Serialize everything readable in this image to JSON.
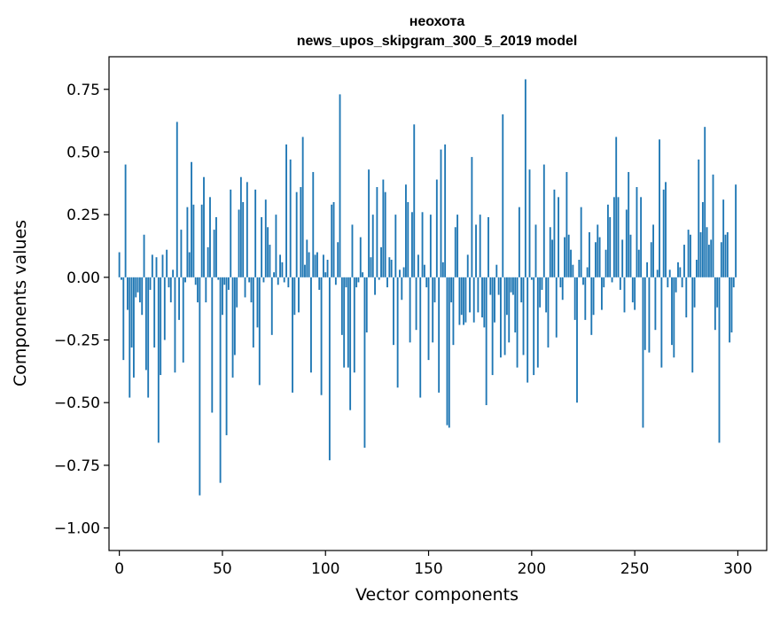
{
  "chart_data": {
    "type": "bar",
    "title": "неохота",
    "subtitle": "news_upos_skipgram_300_5_2019 model",
    "xlabel": "Vector components",
    "ylabel": "Components values",
    "xlim": [
      -5,
      314
    ],
    "ylim": [
      -1.09,
      0.88
    ],
    "xticks": [
      0,
      50,
      100,
      150,
      200,
      250,
      300
    ],
    "xtick_labels": [
      "0",
      "50",
      "100",
      "150",
      "200",
      "250",
      "300"
    ],
    "yticks": [
      -1.0,
      -0.75,
      -0.5,
      -0.25,
      0.0,
      0.25,
      0.5,
      0.75
    ],
    "ytick_labels": [
      "−1.00",
      "−0.75",
      "−0.50",
      "−0.25",
      "0.00",
      "0.25",
      "0.50",
      "0.75"
    ],
    "grid": false,
    "bar_color": "#1f77b4",
    "values": [
      0.1,
      -0.01,
      -0.33,
      0.45,
      -0.13,
      -0.48,
      -0.28,
      -0.4,
      -0.08,
      -0.06,
      -0.1,
      -0.15,
      0.17,
      -0.37,
      -0.48,
      -0.05,
      0.09,
      -0.28,
      0.08,
      -0.66,
      -0.39,
      0.09,
      -0.25,
      0.11,
      -0.04,
      -0.1,
      0.03,
      -0.38,
      0.62,
      -0.17,
      0.19,
      -0.34,
      -0.02,
      0.28,
      0.1,
      0.46,
      0.29,
      -0.03,
      -0.1,
      -0.87,
      0.29,
      0.4,
      -0.1,
      0.12,
      0.32,
      -0.54,
      0.19,
      0.24,
      -0.01,
      -0.82,
      -0.15,
      -0.03,
      -0.63,
      -0.05,
      0.35,
      -0.4,
      -0.31,
      -0.12,
      0.27,
      0.4,
      0.3,
      -0.08,
      0.38,
      -0.02,
      -0.1,
      -0.28,
      0.35,
      -0.2,
      -0.43,
      0.24,
      -0.02,
      0.31,
      0.2,
      0.13,
      -0.23,
      0.02,
      0.25,
      -0.03,
      0.09,
      0.06,
      -0.02,
      0.53,
      -0.04,
      0.47,
      -0.46,
      -0.15,
      0.34,
      -0.14,
      0.36,
      0.56,
      0.05,
      0.15,
      0.1,
      -0.38,
      0.42,
      0.09,
      0.1,
      -0.05,
      -0.47,
      0.09,
      0.02,
      0.07,
      -0.73,
      0.29,
      0.3,
      -0.03,
      0.14,
      0.73,
      -0.23,
      -0.36,
      -0.04,
      -0.36,
      -0.53,
      0.21,
      -0.38,
      -0.04,
      -0.02,
      0.16,
      0.02,
      -0.68,
      -0.22,
      0.43,
      0.08,
      0.25,
      -0.07,
      0.36,
      -0.01,
      0.12,
      0.39,
      0.34,
      -0.04,
      0.08,
      0.07,
      -0.27,
      0.25,
      -0.44,
      0.03,
      -0.09,
      0.04,
      0.37,
      0.3,
      -0.26,
      0.26,
      0.61,
      -0.21,
      0.09,
      -0.48,
      0.26,
      0.05,
      -0.04,
      -0.33,
      0.25,
      -0.26,
      -0.1,
      0.39,
      -0.46,
      0.51,
      0.06,
      0.53,
      -0.59,
      -0.6,
      -0.1,
      -0.27,
      0.2,
      0.25,
      -0.19,
      -0.15,
      -0.19,
      -0.18,
      0.09,
      -0.14,
      0.48,
      -0.18,
      0.21,
      -0.14,
      0.25,
      -0.16,
      -0.2,
      -0.51,
      0.24,
      -0.07,
      -0.39,
      -0.18,
      0.05,
      -0.07,
      -0.32,
      0.65,
      -0.31,
      -0.15,
      -0.26,
      -0.06,
      -0.07,
      -0.22,
      -0.36,
      0.28,
      -0.1,
      -0.31,
      0.79,
      -0.42,
      0.43,
      -0.01,
      -0.39,
      0.21,
      -0.36,
      -0.12,
      -0.05,
      0.45,
      -0.14,
      -0.28,
      0.2,
      0.15,
      0.35,
      -0.24,
      0.32,
      -0.04,
      -0.09,
      0.16,
      0.42,
      0.17,
      0.11,
      0.05,
      -0.17,
      -0.5,
      0.07,
      0.28,
      -0.03,
      -0.17,
      0.04,
      0.18,
      -0.23,
      -0.15,
      0.14,
      0.21,
      0.16,
      -0.13,
      -0.04,
      0.11,
      0.29,
      0.24,
      -0.02,
      0.32,
      0.56,
      0.32,
      -0.05,
      0.15,
      -0.14,
      0.27,
      0.42,
      0.17,
      -0.1,
      -0.13,
      0.36,
      0.11,
      0.32,
      -0.6,
      -0.29,
      0.06,
      -0.3,
      0.14,
      0.21,
      -0.21,
      0.03,
      0.55,
      -0.36,
      0.35,
      0.38,
      -0.04,
      0.03,
      -0.27,
      -0.32,
      -0.06,
      0.06,
      0.04,
      -0.04,
      0.13,
      -0.16,
      0.19,
      0.17,
      -0.38,
      -0.12,
      0.07,
      0.47,
      0.18,
      0.3,
      0.6,
      0.2,
      0.13,
      0.15,
      0.41,
      -0.21,
      -0.12,
      -0.66,
      0.14,
      0.31,
      0.17,
      0.18,
      -0.26,
      -0.22,
      -0.04,
      0.37
    ]
  }
}
